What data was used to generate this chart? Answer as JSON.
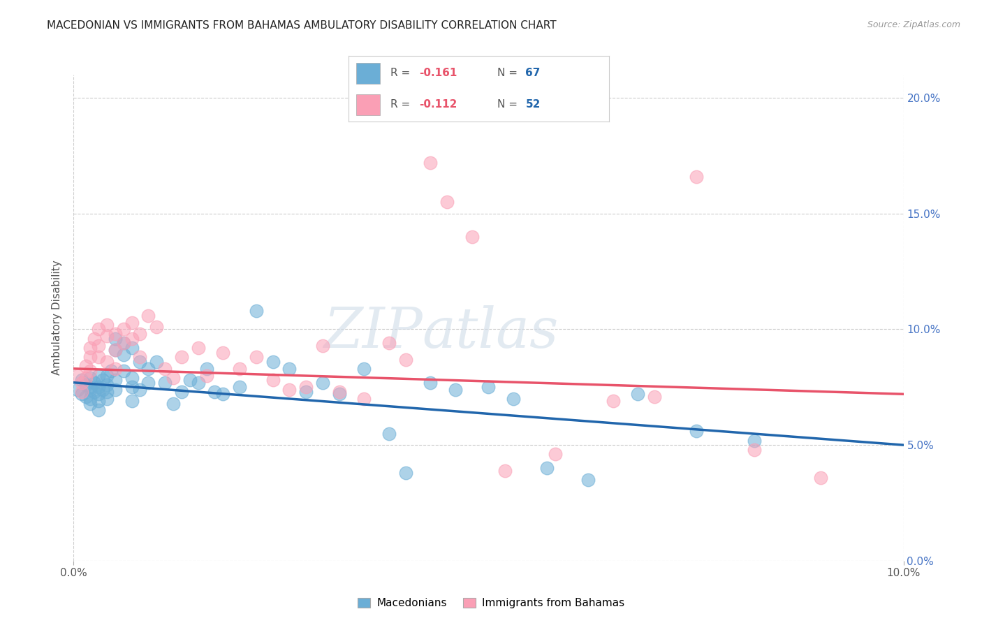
{
  "title": "MACEDONIAN VS IMMIGRANTS FROM BAHAMAS AMBULATORY DISABILITY CORRELATION CHART",
  "source": "Source: ZipAtlas.com",
  "ylabel": "Ambulatory Disability",
  "xmin": 0.0,
  "xmax": 0.1,
  "ymin": 0.0,
  "ymax": 0.21,
  "yticks": [
    0.0,
    0.05,
    0.1,
    0.15,
    0.2
  ],
  "xticks": [
    0.0,
    0.1
  ],
  "blue_color": "#6baed6",
  "pink_color": "#fa9fb5",
  "blue_line_color": "#2166ac",
  "pink_line_color": "#e8536a",
  "r_color": "#e8536a",
  "n_color": "#2166ac",
  "legend_blue_r": "-0.161",
  "legend_blue_n": "67",
  "legend_pink_r": "-0.112",
  "legend_pink_n": "52",
  "watermark_zip": "ZIP",
  "watermark_atlas": "atlas",
  "blue_scatter_x": [
    0.0005,
    0.001,
    0.001,
    0.0015,
    0.0015,
    0.002,
    0.002,
    0.002,
    0.002,
    0.002,
    0.0025,
    0.0025,
    0.003,
    0.003,
    0.003,
    0.003,
    0.003,
    0.0035,
    0.0035,
    0.004,
    0.004,
    0.004,
    0.004,
    0.0045,
    0.005,
    0.005,
    0.005,
    0.005,
    0.006,
    0.006,
    0.006,
    0.007,
    0.007,
    0.007,
    0.007,
    0.008,
    0.008,
    0.009,
    0.009,
    0.01,
    0.011,
    0.012,
    0.013,
    0.014,
    0.015,
    0.016,
    0.017,
    0.018,
    0.02,
    0.022,
    0.024,
    0.026,
    0.028,
    0.03,
    0.032,
    0.035,
    0.038,
    0.04,
    0.043,
    0.046,
    0.05,
    0.053,
    0.057,
    0.062,
    0.068,
    0.075,
    0.082
  ],
  "blue_scatter_y": [
    0.074,
    0.072,
    0.078,
    0.071,
    0.076,
    0.074,
    0.07,
    0.068,
    0.075,
    0.079,
    0.073,
    0.077,
    0.072,
    0.075,
    0.069,
    0.08,
    0.065,
    0.074,
    0.078,
    0.076,
    0.08,
    0.073,
    0.07,
    0.082,
    0.074,
    0.078,
    0.091,
    0.096,
    0.089,
    0.094,
    0.082,
    0.092,
    0.079,
    0.075,
    0.069,
    0.086,
    0.074,
    0.083,
    0.077,
    0.086,
    0.077,
    0.068,
    0.073,
    0.078,
    0.077,
    0.083,
    0.073,
    0.072,
    0.075,
    0.108,
    0.086,
    0.083,
    0.073,
    0.077,
    0.072,
    0.083,
    0.055,
    0.038,
    0.077,
    0.074,
    0.075,
    0.07,
    0.04,
    0.035,
    0.072,
    0.056,
    0.052
  ],
  "pink_scatter_x": [
    0.0005,
    0.001,
    0.001,
    0.0015,
    0.0015,
    0.002,
    0.002,
    0.002,
    0.0025,
    0.003,
    0.003,
    0.003,
    0.004,
    0.004,
    0.004,
    0.005,
    0.005,
    0.005,
    0.006,
    0.006,
    0.007,
    0.007,
    0.008,
    0.008,
    0.009,
    0.01,
    0.011,
    0.012,
    0.013,
    0.015,
    0.016,
    0.018,
    0.02,
    0.022,
    0.024,
    0.026,
    0.028,
    0.03,
    0.032,
    0.035,
    0.038,
    0.04,
    0.043,
    0.045,
    0.048,
    0.052,
    0.058,
    0.065,
    0.07,
    0.075,
    0.082,
    0.09
  ],
  "pink_scatter_y": [
    0.08,
    0.077,
    0.073,
    0.084,
    0.079,
    0.092,
    0.088,
    0.082,
    0.096,
    0.1,
    0.093,
    0.088,
    0.102,
    0.097,
    0.086,
    0.098,
    0.091,
    0.083,
    0.1,
    0.094,
    0.103,
    0.096,
    0.098,
    0.088,
    0.106,
    0.101,
    0.083,
    0.079,
    0.088,
    0.092,
    0.08,
    0.09,
    0.083,
    0.088,
    0.078,
    0.074,
    0.075,
    0.093,
    0.073,
    0.07,
    0.094,
    0.087,
    0.172,
    0.155,
    0.14,
    0.039,
    0.046,
    0.069,
    0.071,
    0.166,
    0.048,
    0.036
  ],
  "blue_line_x": [
    0.0,
    0.1
  ],
  "blue_line_y": [
    0.077,
    0.05
  ],
  "pink_line_x": [
    0.0,
    0.1
  ],
  "pink_line_y": [
    0.083,
    0.072
  ]
}
